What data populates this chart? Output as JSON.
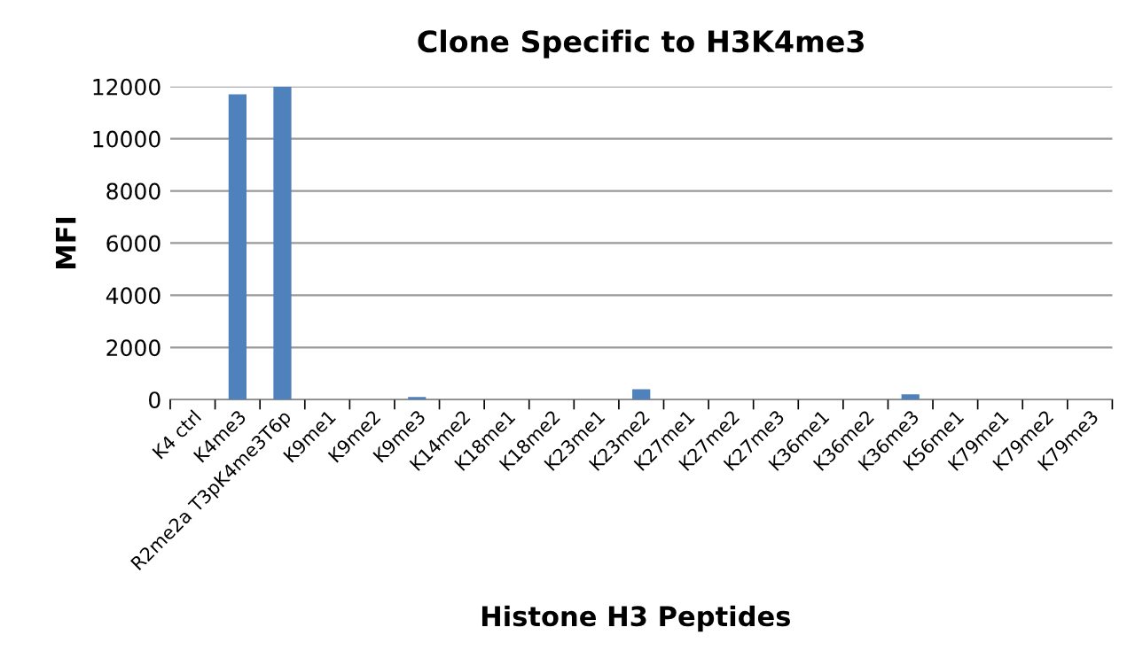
{
  "chart_data": {
    "type": "bar",
    "title": "Clone Specific to H3K4me3",
    "xlabel": "Histone H3 Peptides",
    "ylabel": "MFI",
    "categories": [
      "K4 ctrl",
      "K4me3",
      "R2me2a T3pK4me3T6p",
      "K9me1",
      "K9me2",
      "K9me3",
      "K14me2",
      "K18me1",
      "K18me2",
      "K23me1",
      "K23me2",
      "K27me1",
      "K27me2",
      "K27me3",
      "K36me1",
      "K36me2",
      "K36me3",
      "K56me1",
      "K79me1",
      "K79me2",
      "K79me3"
    ],
    "values": [
      0,
      11700,
      12000,
      0,
      0,
      100,
      0,
      0,
      0,
      0,
      400,
      0,
      0,
      0,
      0,
      0,
      200,
      0,
      0,
      0,
      0
    ],
    "color": "#4f81bd",
    "ylim": [
      0,
      12000
    ],
    "yticks": [
      0,
      2000,
      4000,
      6000,
      8000,
      10000,
      12000
    ],
    "grid": "y"
  }
}
